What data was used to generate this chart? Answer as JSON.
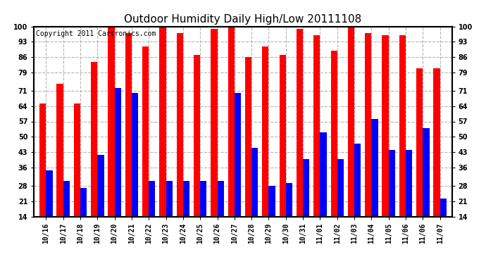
{
  "title": "Outdoor Humidity Daily High/Low 20111108",
  "copyright": "Copyright 2011 Cartronics.com",
  "categories": [
    "10/16",
    "10/17",
    "10/18",
    "10/19",
    "10/20",
    "10/21",
    "10/22",
    "10/23",
    "10/24",
    "10/25",
    "10/26",
    "10/27",
    "10/28",
    "10/29",
    "10/30",
    "10/31",
    "11/01",
    "11/02",
    "11/03",
    "11/04",
    "11/05",
    "11/06",
    "11/06",
    "11/07"
  ],
  "highs": [
    65,
    74,
    65,
    84,
    100,
    97,
    91,
    100,
    97,
    87,
    99,
    100,
    86,
    91,
    87,
    99,
    96,
    89,
    100,
    97,
    96,
    96,
    81,
    81
  ],
  "lows": [
    35,
    30,
    27,
    42,
    72,
    70,
    30,
    30,
    30,
    30,
    30,
    70,
    45,
    28,
    29,
    40,
    52,
    40,
    47,
    58,
    44,
    44,
    54,
    22
  ],
  "high_color": "#ff0000",
  "low_color": "#0000ff",
  "bg_color": "#ffffff",
  "plot_bg_color": "#ffffff",
  "grid_color": "#b4b4b4",
  "ymin": 14,
  "ymax": 100,
  "yticks": [
    14,
    21,
    28,
    36,
    43,
    50,
    57,
    64,
    71,
    79,
    86,
    93,
    100
  ],
  "bar_width": 0.38,
  "title_fontsize": 11,
  "tick_fontsize": 7,
  "copyright_fontsize": 7
}
